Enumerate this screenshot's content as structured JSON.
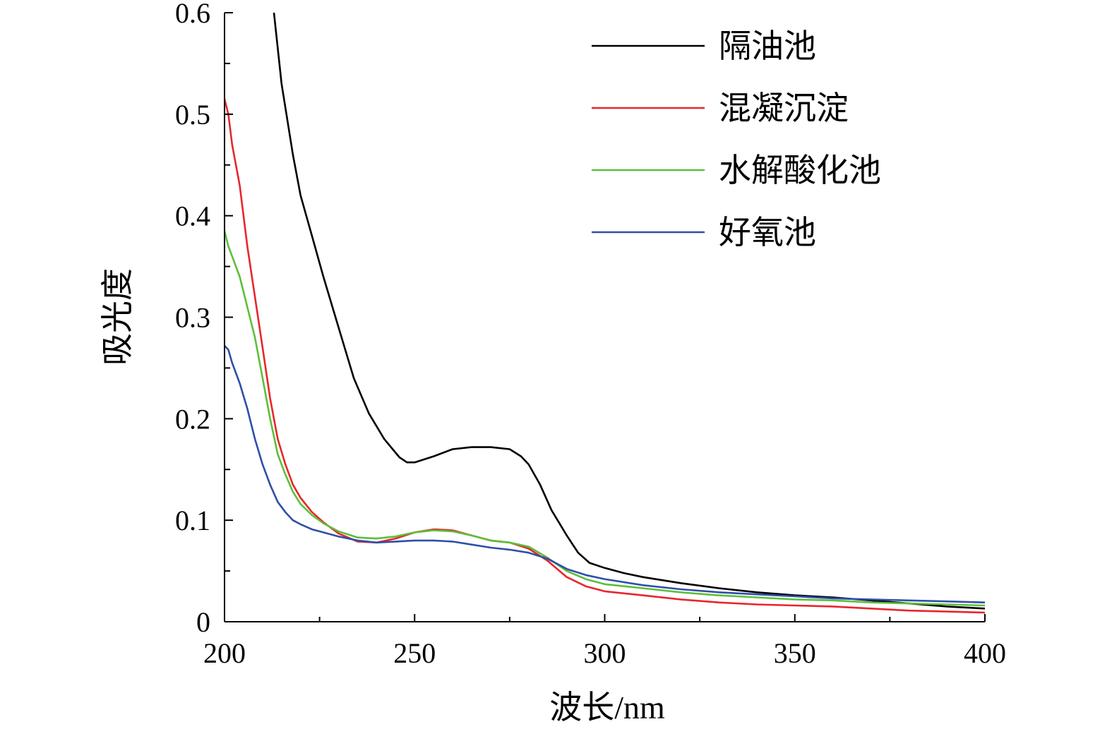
{
  "chart_data": {
    "type": "line",
    "xlabel": "波长/nm",
    "ylabel": "吸光度",
    "xlim": [
      200,
      400
    ],
    "ylim": [
      0,
      0.6
    ],
    "xticks": [
      200,
      250,
      300,
      350,
      400
    ],
    "xtick_labels": [
      "200",
      "250",
      "300",
      "350",
      "400"
    ],
    "yticks": [
      0,
      0.1,
      0.2,
      0.3,
      0.4,
      0.5,
      0.6
    ],
    "ytick_labels": [
      "0",
      "0.1",
      "0.2",
      "0.3",
      "0.4",
      "0.5",
      "0.6"
    ],
    "legend_position": "top-right",
    "grid": false,
    "series": [
      {
        "name": "隔油池",
        "color": "#000000",
        "x": [
          213,
          215,
          218,
          220,
          223,
          226,
          230,
          234,
          238,
          242,
          246,
          248,
          250,
          255,
          260,
          265,
          270,
          275,
          278,
          280,
          283,
          286,
          290,
          293,
          296,
          300,
          305,
          310,
          320,
          330,
          340,
          350,
          360,
          370,
          380,
          390,
          400
        ],
        "y": [
          0.6,
          0.53,
          0.46,
          0.42,
          0.38,
          0.34,
          0.29,
          0.24,
          0.205,
          0.18,
          0.162,
          0.157,
          0.157,
          0.163,
          0.17,
          0.172,
          0.172,
          0.17,
          0.163,
          0.155,
          0.135,
          0.11,
          0.085,
          0.068,
          0.058,
          0.053,
          0.048,
          0.044,
          0.038,
          0.033,
          0.029,
          0.026,
          0.024,
          0.021,
          0.018,
          0.015,
          0.013
        ]
      },
      {
        "name": "混凝沉淀",
        "color": "#e8262b",
        "x": [
          200,
          201,
          202,
          204,
          206,
          208,
          210,
          212,
          214,
          216,
          218,
          220,
          223,
          226,
          230,
          235,
          240,
          245,
          250,
          255,
          260,
          265,
          270,
          275,
          280,
          285,
          290,
          295,
          300,
          310,
          320,
          330,
          340,
          350,
          360,
          370,
          380,
          390,
          400
        ],
        "y": [
          0.515,
          0.5,
          0.47,
          0.43,
          0.37,
          0.32,
          0.27,
          0.22,
          0.18,
          0.155,
          0.135,
          0.122,
          0.108,
          0.098,
          0.087,
          0.079,
          0.078,
          0.082,
          0.088,
          0.091,
          0.09,
          0.085,
          0.08,
          0.078,
          0.072,
          0.06,
          0.044,
          0.035,
          0.03,
          0.026,
          0.022,
          0.019,
          0.017,
          0.016,
          0.015,
          0.013,
          0.011,
          0.01,
          0.009
        ]
      },
      {
        "name": "水解酸化池",
        "color": "#5cbf3a",
        "x": [
          200,
          201,
          202,
          204,
          206,
          208,
          210,
          212,
          214,
          216,
          218,
          220,
          223,
          226,
          230,
          235,
          240,
          245,
          250,
          255,
          260,
          265,
          270,
          275,
          280,
          285,
          290,
          295,
          300,
          310,
          320,
          330,
          340,
          350,
          360,
          370,
          380,
          390,
          400
        ],
        "y": [
          0.385,
          0.37,
          0.36,
          0.34,
          0.31,
          0.28,
          0.24,
          0.2,
          0.165,
          0.145,
          0.128,
          0.116,
          0.105,
          0.097,
          0.089,
          0.083,
          0.082,
          0.084,
          0.088,
          0.09,
          0.089,
          0.085,
          0.08,
          0.078,
          0.074,
          0.063,
          0.05,
          0.042,
          0.037,
          0.033,
          0.029,
          0.026,
          0.024,
          0.022,
          0.021,
          0.019,
          0.018,
          0.017,
          0.016
        ]
      },
      {
        "name": "好氧池",
        "color": "#2f4fa8",
        "x": [
          200,
          201,
          202,
          204,
          206,
          208,
          210,
          212,
          214,
          216,
          218,
          220,
          223,
          226,
          230,
          235,
          240,
          245,
          250,
          255,
          260,
          265,
          270,
          275,
          280,
          285,
          290,
          295,
          300,
          310,
          320,
          330,
          340,
          350,
          360,
          370,
          380,
          390,
          400
        ],
        "y": [
          0.272,
          0.268,
          0.255,
          0.235,
          0.21,
          0.18,
          0.155,
          0.135,
          0.118,
          0.108,
          0.1,
          0.096,
          0.091,
          0.088,
          0.084,
          0.08,
          0.078,
          0.079,
          0.08,
          0.08,
          0.079,
          0.076,
          0.073,
          0.071,
          0.068,
          0.062,
          0.052,
          0.046,
          0.042,
          0.036,
          0.032,
          0.029,
          0.027,
          0.025,
          0.023,
          0.022,
          0.021,
          0.02,
          0.019
        ]
      }
    ]
  }
}
